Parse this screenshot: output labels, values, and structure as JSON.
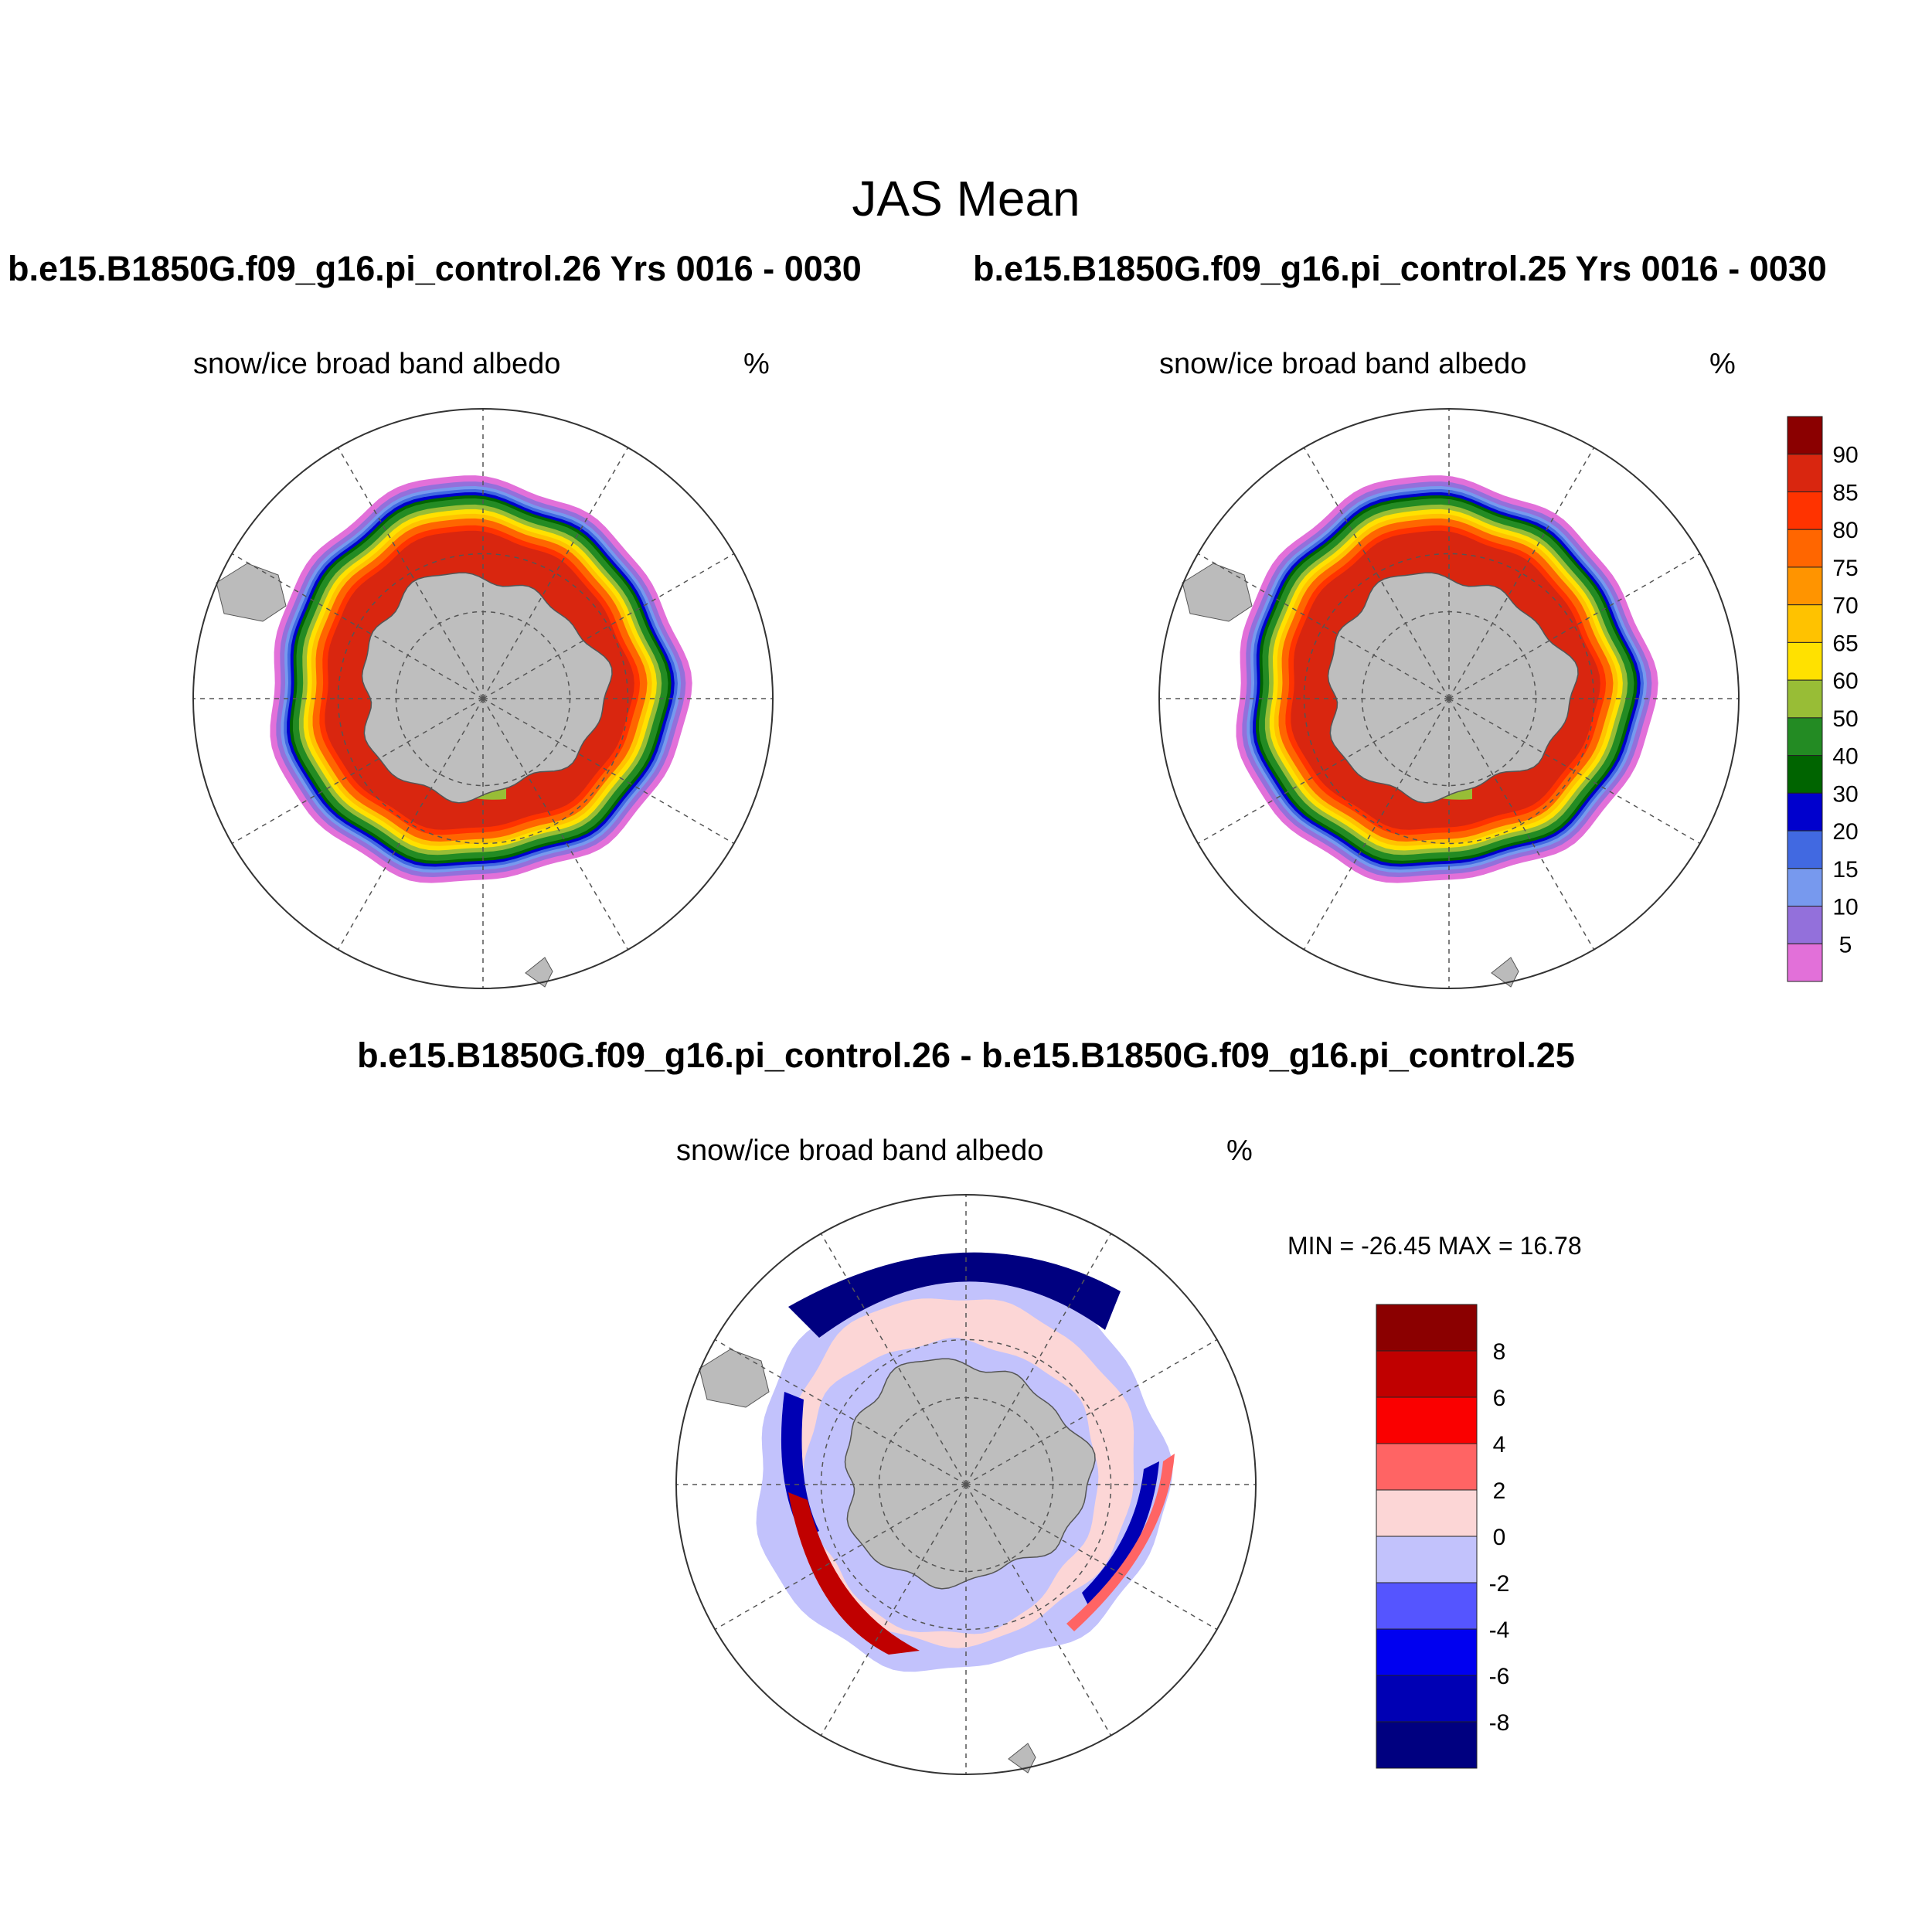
{
  "title": "JAS Mean",
  "panels": [
    {
      "case_title": "b.e15.B1850G.f09_g16.pi_control.26  Yrs 0016 - 0030",
      "variable": "snow/ice broad band albedo",
      "units": "%"
    },
    {
      "case_title": "b.e15.B1850G.f09_g16.pi_control.25  Yrs 0016 - 0030",
      "variable": "snow/ice broad band albedo",
      "units": "%"
    },
    {
      "case_title": "b.e15.B1850G.f09_g16.pi_control.26 - b.e15.B1850G.f09_g16.pi_control.25",
      "variable": "snow/ice broad band albedo",
      "units": "%",
      "minmax": "MIN = -26.45 MAX =  16.78"
    }
  ],
  "chart_data": [
    {
      "type": "heatmap",
      "projection": "south polar stereographic",
      "grid": true,
      "colorbar": {
        "labels": [
          "90",
          "85",
          "80",
          "75",
          "70",
          "65",
          "60",
          "50",
          "40",
          "30",
          "20",
          "15",
          "10",
          "5"
        ],
        "colors": [
          "#8b0000",
          "#d9260f",
          "#ff3300",
          "#ff6600",
          "#ff9400",
          "#ffc200",
          "#ffe100",
          "#98bd36",
          "#238b23",
          "#006400",
          "#0000cd",
          "#4169e1",
          "#7799ee",
          "#9370db",
          "#e270d9"
        ]
      }
    },
    {
      "type": "heatmap",
      "projection": "south polar stereographic",
      "grid": true,
      "colorbar": {
        "labels": [
          "8",
          "6",
          "4",
          "2",
          "0",
          "-2",
          "-4",
          "-6",
          "-8"
        ],
        "colors": [
          "#8b0000",
          "#c00000",
          "#fa0000",
          "#ff6464",
          "#fcd6d6",
          "#c2c2fc",
          "#5555ff",
          "#0000f0",
          "#0000b4",
          "#000080"
        ]
      }
    }
  ]
}
